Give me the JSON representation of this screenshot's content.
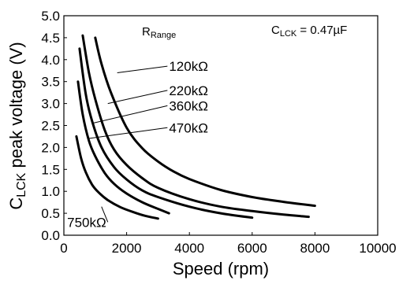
{
  "chart_data": {
    "type": "line",
    "xlabel": "Speed (rpm)",
    "ylabel": {
      "prefix": "C",
      "sub": "LCK",
      "suffix": " peak voltage (V)"
    },
    "xlim": [
      0,
      10000
    ],
    "ylim": [
      0,
      5
    ],
    "xticks": [
      0,
      2000,
      4000,
      6000,
      8000,
      10000
    ],
    "yticks": [
      0.0,
      0.5,
      1.0,
      1.5,
      2.0,
      2.5,
      3.0,
      3.5,
      4.0,
      4.5,
      5.0
    ],
    "xtick_labels": [
      "0",
      "2000",
      "4000",
      "6000",
      "8000",
      "10000"
    ],
    "ytick_labels": [
      "0.0",
      "0.5",
      "1.0",
      "1.5",
      "2.0",
      "2.5",
      "3.0",
      "3.5",
      "4.0",
      "4.5",
      "5.0"
    ],
    "grid": false,
    "box_label": {
      "prefix": "C",
      "sub": "LCK",
      "suffix": " = 0.47µF"
    },
    "legend_title": {
      "prefix": "R",
      "sub": "Range"
    },
    "series": [
      {
        "name": "120kΩ",
        "x": [
          1000,
          1200,
          1500,
          2000,
          2500,
          3000,
          3500,
          4000,
          5000,
          6000,
          7000,
          8000
        ],
        "y": [
          4.5,
          3.9,
          3.25,
          2.45,
          1.98,
          1.68,
          1.45,
          1.28,
          1.03,
          0.87,
          0.76,
          0.67
        ]
      },
      {
        "name": "220kΩ",
        "x": [
          600,
          800,
          1000,
          1300,
          1600,
          2000,
          2500,
          3000,
          4000,
          5000,
          6000,
          7000,
          7800
        ],
        "y": [
          4.55,
          3.7,
          3.1,
          2.4,
          1.95,
          1.6,
          1.3,
          1.08,
          0.82,
          0.65,
          0.55,
          0.47,
          0.42
        ]
      },
      {
        "name": "360kΩ",
        "x": [
          500,
          700,
          900,
          1200,
          1600,
          2000,
          2500,
          3000,
          4000,
          5000,
          6000
        ],
        "y": [
          4.25,
          3.2,
          2.6,
          2.0,
          1.55,
          1.27,
          1.02,
          0.87,
          0.65,
          0.5,
          0.4
        ]
      },
      {
        "name": "470kΩ",
        "x": [
          450,
          600,
          800,
          1000,
          1300,
          1600,
          2000,
          2500,
          3000,
          3350
        ],
        "y": [
          3.5,
          2.75,
          2.15,
          1.8,
          1.42,
          1.17,
          0.95,
          0.75,
          0.6,
          0.5
        ]
      },
      {
        "name": "750kΩ",
        "x": [
          400,
          550,
          700,
          900,
          1100,
          1400,
          1800,
          2200,
          2600,
          3000
        ],
        "y": [
          2.25,
          1.75,
          1.43,
          1.15,
          0.98,
          0.8,
          0.64,
          0.53,
          0.44,
          0.38
        ]
      }
    ],
    "annotations": [
      {
        "text": "120kΩ",
        "series": 0,
        "x": 1700,
        "y": 3.7,
        "label_x": 3300,
        "label_y": 3.85
      },
      {
        "text": "220kΩ",
        "series": 1,
        "x": 1400,
        "y": 3.0,
        "label_x": 3300,
        "label_y": 3.3
      },
      {
        "text": "360kΩ",
        "series": 2,
        "x": 900,
        "y": 2.55,
        "label_x": 3300,
        "label_y": 2.95
      },
      {
        "text": "470kΩ",
        "series": 3,
        "x": 750,
        "y": 2.2,
        "label_x": 3300,
        "label_y": 2.45
      },
      {
        "text": "750kΩ",
        "series": 4,
        "x": 1200,
        "y": 0.65,
        "label_x": 1400,
        "label_y": 0.3
      }
    ]
  }
}
